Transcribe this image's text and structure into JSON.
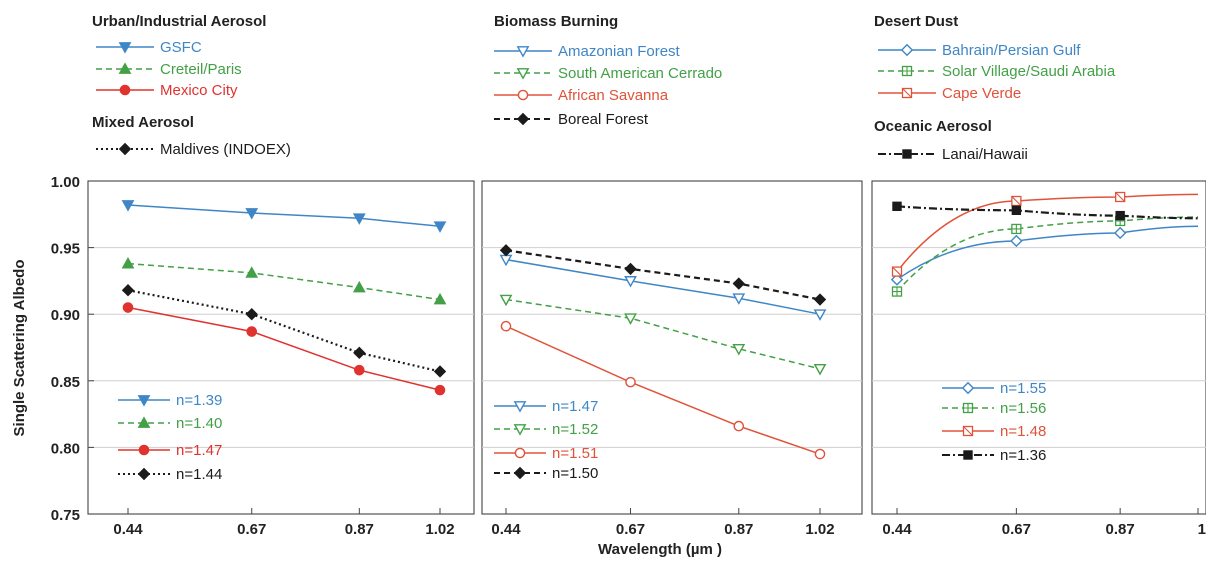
{
  "y_axis_label": "Single Scattering Albedo",
  "x_axis_label": "Wavelength (µm )",
  "colors": {
    "blue": "#3f86c6",
    "green": "#43a047",
    "red": "#e0322f",
    "black": "#1b1b1b",
    "orange_red": "#e0533a"
  },
  "chart_data": [
    {
      "type": "line",
      "panel": "Urban/Industrial Aerosol + Mixed Aerosol",
      "groups": [
        {
          "title": "Urban/Industrial Aerosol",
          "series_indices": [
            0,
            1,
            2
          ]
        },
        {
          "title": "Mixed Aerosol",
          "series_indices": [
            3
          ]
        }
      ],
      "x": [
        0.44,
        0.67,
        0.87,
        1.02
      ],
      "x_tick_labels": [
        "0.44",
        "0.67",
        "0.87",
        "1.02"
      ],
      "ylim": [
        0.75,
        1.0
      ],
      "y_ticks": [
        0.75,
        0.8,
        0.85,
        0.9,
        0.95,
        1.0
      ],
      "y_tick_labels": [
        "0.75",
        "0.80",
        "0.85",
        "0.90",
        "0.95",
        "1.00"
      ],
      "grid": "horizontal",
      "series": [
        {
          "name": "GSFC",
          "n_label": "n=1.39",
          "values": [
            0.982,
            0.976,
            0.972,
            0.966
          ],
          "color": "#3f86c6",
          "dash": "solid",
          "marker": "triangle-down-filled"
        },
        {
          "name": "Creteil/Paris",
          "n_label": "n=1.40",
          "values": [
            0.938,
            0.931,
            0.92,
            0.911
          ],
          "color": "#43a047",
          "dash": "dashed",
          "marker": "triangle-up-filled"
        },
        {
          "name": "Mexico City",
          "n_label": "n=1.47",
          "values": [
            0.905,
            0.887,
            0.858,
            0.843
          ],
          "color": "#e0322f",
          "dash": "solid",
          "marker": "circle-filled"
        },
        {
          "name": "Maldives (INDOEX)",
          "n_label": "n=1.44",
          "values": [
            0.918,
            0.9,
            0.871,
            0.857
          ],
          "color": "#1b1b1b",
          "dash": "dotted",
          "marker": "diamond-filled"
        }
      ]
    },
    {
      "type": "line",
      "panel": "Biomass Burning",
      "groups": [
        {
          "title": "Biomass Burning",
          "series_indices": [
            0,
            1,
            2,
            3
          ]
        }
      ],
      "x": [
        0.44,
        0.67,
        0.87,
        1.02
      ],
      "x_tick_labels": [
        "0.44",
        "0.67",
        "0.87",
        "1.02"
      ],
      "ylim": [
        0.75,
        1.0
      ],
      "grid": "horizontal",
      "series": [
        {
          "name": "Amazonian Forest",
          "n_label": "n=1.47",
          "values": [
            0.941,
            0.925,
            0.912,
            0.9
          ],
          "color": "#3f86c6",
          "dash": "solid",
          "marker": "triangle-down-open"
        },
        {
          "name": "South American Cerrado",
          "n_label": "n=1.52",
          "values": [
            0.911,
            0.897,
            0.874,
            0.859
          ],
          "color": "#43a047",
          "dash": "dashed",
          "marker": "triangle-down-open"
        },
        {
          "name": "African Savanna",
          "n_label": "n=1.51",
          "values": [
            0.891,
            0.849,
            0.816,
            0.795
          ],
          "color": "#e0533a",
          "dash": "solid",
          "marker": "circle-open"
        },
        {
          "name": "Boreal Forest",
          "n_label": "n=1.50",
          "values": [
            0.948,
            0.934,
            0.923,
            0.911
          ],
          "color": "#1b1b1b",
          "dash": "dashed",
          "marker": "diamond-filled"
        }
      ]
    },
    {
      "type": "line",
      "panel": "Desert Dust + Oceanic Aerosol",
      "groups": [
        {
          "title": "Desert Dust",
          "series_indices": [
            0,
            1,
            2
          ]
        },
        {
          "title": "Oceanic Aerosol",
          "series_indices": [
            3
          ]
        }
      ],
      "x": [
        0.44,
        0.67,
        0.87,
        1.02
      ],
      "x_tick_labels": [
        "0.44",
        "0.67",
        "0.87",
        "1"
      ],
      "ylim": [
        0.75,
        1.0
      ],
      "grid": "horizontal",
      "series": [
        {
          "name": "Bahrain/Persian Gulf",
          "n_label": "n=1.55",
          "values": [
            0.926,
            0.955,
            0.961,
            0.966
          ],
          "color": "#3f86c6",
          "dash": "solid",
          "marker": "diamond-open"
        },
        {
          "name": "Solar Village/Saudi Arabia",
          "n_label": "n=1.56",
          "values": [
            0.917,
            0.964,
            0.97,
            0.973
          ],
          "color": "#43a047",
          "dash": "dashed",
          "marker": "square-plus-open"
        },
        {
          "name": "Cape Verde",
          "n_label": "n=1.48",
          "values": [
            0.932,
            0.985,
            0.988,
            0.99
          ],
          "color": "#e0533a",
          "dash": "solid",
          "marker": "square-cross-open"
        },
        {
          "name": "Lanai/Hawaii",
          "n_label": "n=1.36",
          "values": [
            0.981,
            0.978,
            0.974,
            0.972
          ],
          "color": "#1b1b1b",
          "dash": "dashdot",
          "marker": "square-filled"
        }
      ]
    }
  ]
}
